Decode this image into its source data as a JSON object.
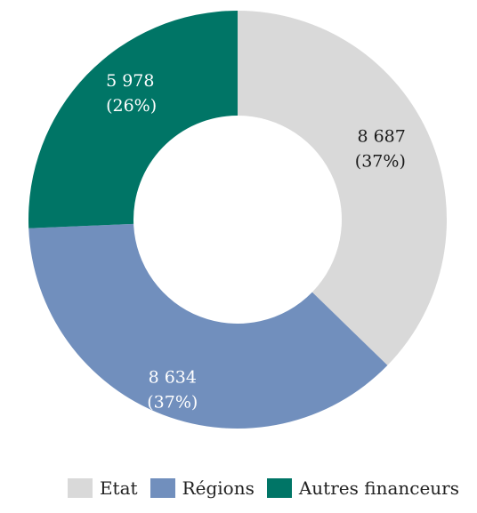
{
  "chart_data": {
    "type": "pie",
    "variant": "donut",
    "legend_position": "bottom-right",
    "slices": [
      {
        "name": "Etat",
        "value": 8687,
        "value_label": "8 687",
        "percent_label": "(37%)",
        "color": "#d9d9d9",
        "text_color": "#1a1a1a"
      },
      {
        "name": "Régions",
        "value": 8634,
        "value_label": "8 634",
        "percent_label": "(37%)",
        "color": "#718fbd",
        "text_color": "#ffffff"
      },
      {
        "name": "Autres financeurs",
        "value": 5978,
        "value_label": "5 978",
        "percent_label": "(26%)",
        "color": "#007566",
        "text_color": "#ffffff"
      }
    ]
  }
}
